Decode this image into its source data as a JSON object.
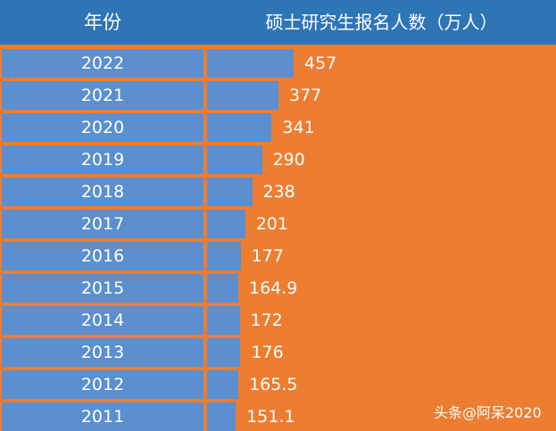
{
  "chart_data": {
    "type": "bar",
    "orientation": "horizontal",
    "header": {
      "category_label": "年份",
      "value_label": "硕士研究生报名人数（万人）"
    },
    "categories": [
      "2022",
      "2021",
      "2020",
      "2019",
      "2018",
      "2017",
      "2016",
      "2015",
      "2014",
      "2013",
      "2012",
      "2011"
    ],
    "values": [
      457,
      377,
      341,
      290,
      238,
      201,
      177,
      164.9,
      172,
      176,
      165.5,
      151.1
    ],
    "value_labels": [
      "457",
      "377",
      "341",
      "290",
      "238",
      "201",
      "177",
      "164.9",
      "172",
      "176",
      "165.5",
      "151.1"
    ],
    "colors": {
      "background": "#ed7d31",
      "header": "#2e75b6",
      "bar": "#5b8fd0",
      "text": "#ffffff"
    }
  },
  "watermark": "头条@阿呆2020"
}
